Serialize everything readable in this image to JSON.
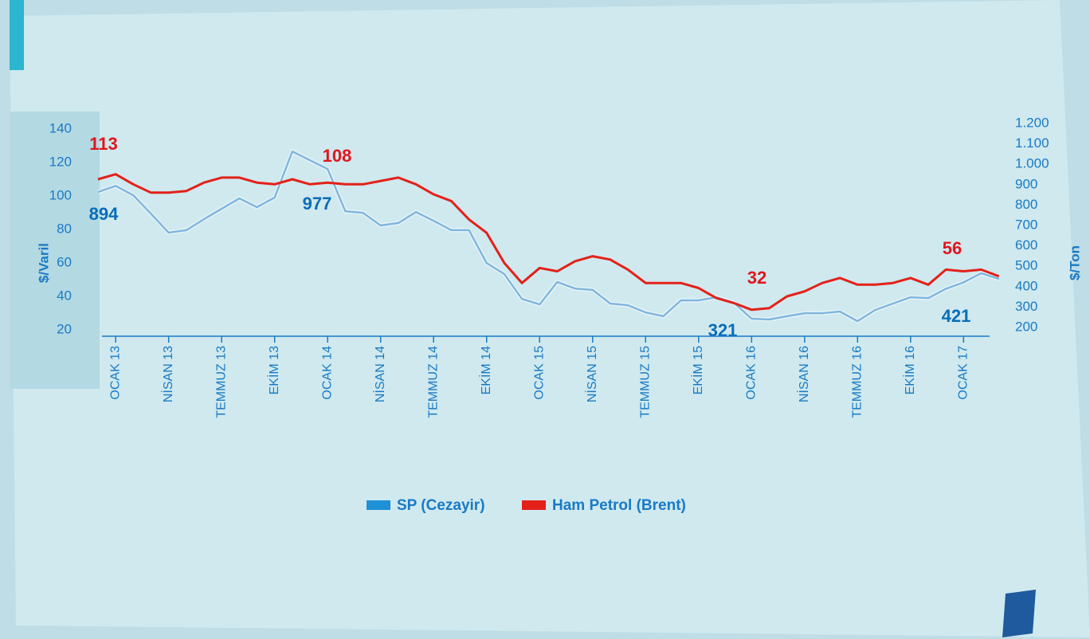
{
  "chart_data": {
    "type": "line",
    "categories": [
      null,
      "OCAK 13",
      null,
      null,
      "NİSAN 13",
      null,
      null,
      "TEMMUZ 13",
      null,
      null,
      "EKİM 13",
      null,
      null,
      "OCAK 14",
      null,
      null,
      "NİSAN 14",
      null,
      null,
      "TEMMUZ 14",
      null,
      null,
      "EKİM 14",
      null,
      null,
      "OCAK 15",
      null,
      null,
      "NİSAN 15",
      null,
      null,
      "TEMMUZ 15",
      null,
      null,
      "EKİM 15",
      null,
      null,
      "OCAK 16",
      null,
      null,
      "NİSAN 16",
      null,
      null,
      "TEMMUZ 16",
      null,
      null,
      "EKİM 16",
      null,
      null,
      "OCAK 17",
      null,
      null
    ],
    "series": [
      {
        "name": "SP (Cezayir)",
        "color": "#1e90d6",
        "axis": "y2",
        "values": [
          864,
          894,
          848,
          758,
          665,
          677,
          731,
          782,
          833,
          790,
          837,
          1063,
          1020,
          977,
          770,
          762,
          700,
          712,
          766,
          723,
          677,
          677,
          516,
          462,
          340,
          313,
          423,
          391,
          384,
          317,
          309,
          274,
          255,
          333,
          333,
          348,
          321,
          243,
          239,
          255,
          270,
          270,
          278,
          231,
          286,
          317,
          348,
          344,
          390,
          421,
          466,
          438
        ]
      },
      {
        "name": "Ham Petrol (Brent)",
        "color": "#e32119",
        "axis": "y",
        "values": [
          110,
          113,
          107,
          102,
          102,
          103,
          108,
          111,
          111,
          108,
          107,
          110,
          107,
          108,
          107,
          107,
          109,
          111,
          107,
          101,
          97,
          86,
          78,
          60,
          48,
          57,
          55,
          61,
          64,
          62,
          56,
          48,
          48,
          48,
          45,
          39,
          36,
          32,
          33,
          40,
          43,
          48,
          51,
          47,
          47,
          48,
          51,
          47,
          56,
          55,
          56,
          52
        ]
      }
    ],
    "ylabel": "$/Varil",
    "y2label": "$/Ton",
    "ylim": [
      20,
      140
    ],
    "yticks": [
      20,
      40,
      60,
      80,
      100,
      120,
      140
    ],
    "y2lim": [
      200,
      1200
    ],
    "y2ticks": [
      200,
      300,
      400,
      500,
      600,
      700,
      800,
      900,
      {
        "value": 1000,
        "label": "1.000"
      },
      {
        "value": 1100,
        "label": "1.100"
      },
      {
        "value": 1200,
        "label": "1.200"
      }
    ],
    "grid": false,
    "legend": "bottom"
  }
}
